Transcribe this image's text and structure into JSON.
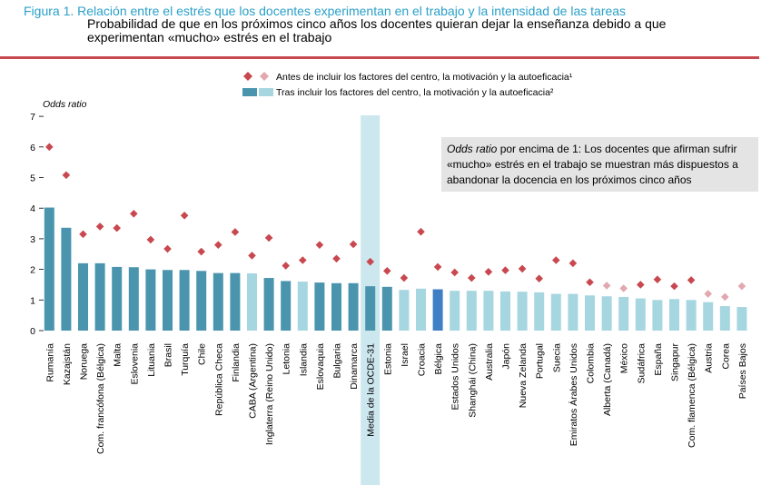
{
  "header": {
    "title": "Figura 1. Relación entre el estrés que los docentes experimentan en el trabajo y la intensidad de las tareas",
    "subtitle_line1": "Probabilidad de que en los próximos cinco años los docentes quieran dejar la enseñanza debido a que",
    "subtitle_line2": "experimentan «mucho» estrés en el trabajo"
  },
  "colors": {
    "accent": "#c8484f",
    "title_blue": "#2aa0c8",
    "bar_significant": "#4a95ad",
    "bar_not_significant": "#a6d6e0",
    "bar_belgium": "#3f7fc4",
    "diamond_significant": "#c8484f",
    "diamond_not_significant": "#e2a8b0",
    "oecd_band": "#cde7ef",
    "note_box": "#e4e4e4"
  },
  "legend": {
    "before_label": "Antes de incluir los factores del centro, la motivación y la autoeficacia¹",
    "after_label": "Tras incluir los factores del centro, la motivación y la autoeficacia²"
  },
  "note": {
    "italic_part": "Odds ratio",
    "line1_rest": " por encima de 1: Los docentes que afirman sufrir",
    "line2": "«mucho» estrés en el trabajo se muestran más dispuestos a",
    "line3": "abandonar la docencia en los próximos cinco años"
  },
  "chart_data": {
    "type": "bar",
    "ylabel": "Odds ratio",
    "ylim": [
      0,
      7
    ],
    "yticks": [
      0,
      1,
      2,
      3,
      4,
      5,
      6,
      7
    ],
    "grid": false,
    "legend_position": "top",
    "oecd_category": "Media de la OCDE-31",
    "categories": [
      {
        "name": "Rumanía",
        "after": 4.02,
        "before": 6.0,
        "after_sig": true,
        "before_sig": true
      },
      {
        "name": "Kazajstán",
        "after": 3.36,
        "before": 5.08,
        "after_sig": true,
        "before_sig": true
      },
      {
        "name": "Noruega",
        "after": 2.2,
        "before": 3.15,
        "after_sig": true,
        "before_sig": true
      },
      {
        "name": "Com. francófona (Bélgica)",
        "after": 2.2,
        "before": 3.4,
        "after_sig": true,
        "before_sig": true
      },
      {
        "name": "Malta",
        "after": 2.08,
        "before": 3.35,
        "after_sig": true,
        "before_sig": true
      },
      {
        "name": "Eslovenia",
        "after": 2.07,
        "before": 3.82,
        "after_sig": true,
        "before_sig": true
      },
      {
        "name": "Lituania",
        "after": 2.0,
        "before": 2.97,
        "after_sig": true,
        "before_sig": true
      },
      {
        "name": "Brasil",
        "after": 1.98,
        "before": 2.67,
        "after_sig": true,
        "before_sig": true
      },
      {
        "name": "Turquía",
        "after": 1.98,
        "before": 3.76,
        "after_sig": true,
        "before_sig": true
      },
      {
        "name": "Chile",
        "after": 1.95,
        "before": 2.58,
        "after_sig": true,
        "before_sig": true
      },
      {
        "name": "República Checa",
        "after": 1.88,
        "before": 2.8,
        "after_sig": true,
        "before_sig": true
      },
      {
        "name": "Finlandia",
        "after": 1.88,
        "before": 3.22,
        "after_sig": true,
        "before_sig": true
      },
      {
        "name": "CABA (Argentina)",
        "after": 1.87,
        "before": 2.45,
        "after_sig": false,
        "before_sig": true
      },
      {
        "name": "Inglaterra (Reino Unido)",
        "after": 1.72,
        "before": 3.03,
        "after_sig": true,
        "before_sig": true
      },
      {
        "name": "Letonia",
        "after": 1.62,
        "before": 2.12,
        "after_sig": true,
        "before_sig": true
      },
      {
        "name": "Islandia",
        "after": 1.6,
        "before": 2.3,
        "after_sig": false,
        "before_sig": true
      },
      {
        "name": "Eslovaquia",
        "after": 1.57,
        "before": 2.8,
        "after_sig": true,
        "before_sig": true
      },
      {
        "name": "Bulgaria",
        "after": 1.55,
        "before": 2.35,
        "after_sig": true,
        "before_sig": true
      },
      {
        "name": "Dinamarca",
        "after": 1.55,
        "before": 2.82,
        "after_sig": true,
        "before_sig": true
      },
      {
        "name": "Media de la OCDE-31",
        "after": 1.45,
        "before": 2.25,
        "after_sig": true,
        "before_sig": true
      },
      {
        "name": "Estonia",
        "after": 1.43,
        "before": 1.95,
        "after_sig": true,
        "before_sig": true
      },
      {
        "name": "Israel",
        "after": 1.33,
        "before": 1.72,
        "after_sig": false,
        "before_sig": true
      },
      {
        "name": "Croacia",
        "after": 1.37,
        "before": 3.23,
        "after_sig": false,
        "before_sig": true
      },
      {
        "name": "Bélgica",
        "after": 1.35,
        "before": 2.08,
        "after_sig": true,
        "before_sig": true,
        "highlight": true
      },
      {
        "name": "Estados Unidos",
        "after": 1.3,
        "before": 1.9,
        "after_sig": false,
        "before_sig": true
      },
      {
        "name": "Shanghái (China)",
        "after": 1.3,
        "before": 1.72,
        "after_sig": false,
        "before_sig": true
      },
      {
        "name": "Australia",
        "after": 1.3,
        "before": 1.92,
        "after_sig": false,
        "before_sig": true
      },
      {
        "name": "Japón",
        "after": 1.28,
        "before": 1.97,
        "after_sig": false,
        "before_sig": true
      },
      {
        "name": "Nueva Zelanda",
        "after": 1.27,
        "before": 2.02,
        "after_sig": false,
        "before_sig": true
      },
      {
        "name": "Portugal",
        "after": 1.25,
        "before": 1.7,
        "after_sig": false,
        "before_sig": true
      },
      {
        "name": "Suecia",
        "after": 1.2,
        "before": 2.3,
        "after_sig": false,
        "before_sig": true
      },
      {
        "name": "Emiratos Árabes Unidos",
        "after": 1.2,
        "before": 2.2,
        "after_sig": false,
        "before_sig": true
      },
      {
        "name": "Colombia",
        "after": 1.15,
        "before": 1.58,
        "after_sig": false,
        "before_sig": true
      },
      {
        "name": "Alberta (Canadá)",
        "after": 1.12,
        "before": 1.47,
        "after_sig": false,
        "before_sig": false
      },
      {
        "name": "México",
        "after": 1.1,
        "before": 1.38,
        "after_sig": false,
        "before_sig": false
      },
      {
        "name": "Sudáfrica",
        "after": 1.05,
        "before": 1.5,
        "after_sig": false,
        "before_sig": true
      },
      {
        "name": "España",
        "after": 1.0,
        "before": 1.67,
        "after_sig": false,
        "before_sig": true
      },
      {
        "name": "Singapur",
        "after": 1.03,
        "before": 1.45,
        "after_sig": false,
        "before_sig": true
      },
      {
        "name": "Com. flamenca (Bélgica)",
        "after": 1.0,
        "before": 1.65,
        "after_sig": false,
        "before_sig": true
      },
      {
        "name": "Austria",
        "after": 0.93,
        "before": 1.2,
        "after_sig": false,
        "before_sig": false
      },
      {
        "name": "Corea",
        "after": 0.8,
        "before": 1.1,
        "after_sig": false,
        "before_sig": false
      },
      {
        "name": "Países Bajos",
        "after": 0.77,
        "before": 1.45,
        "after_sig": false,
        "before_sig": false
      }
    ]
  }
}
